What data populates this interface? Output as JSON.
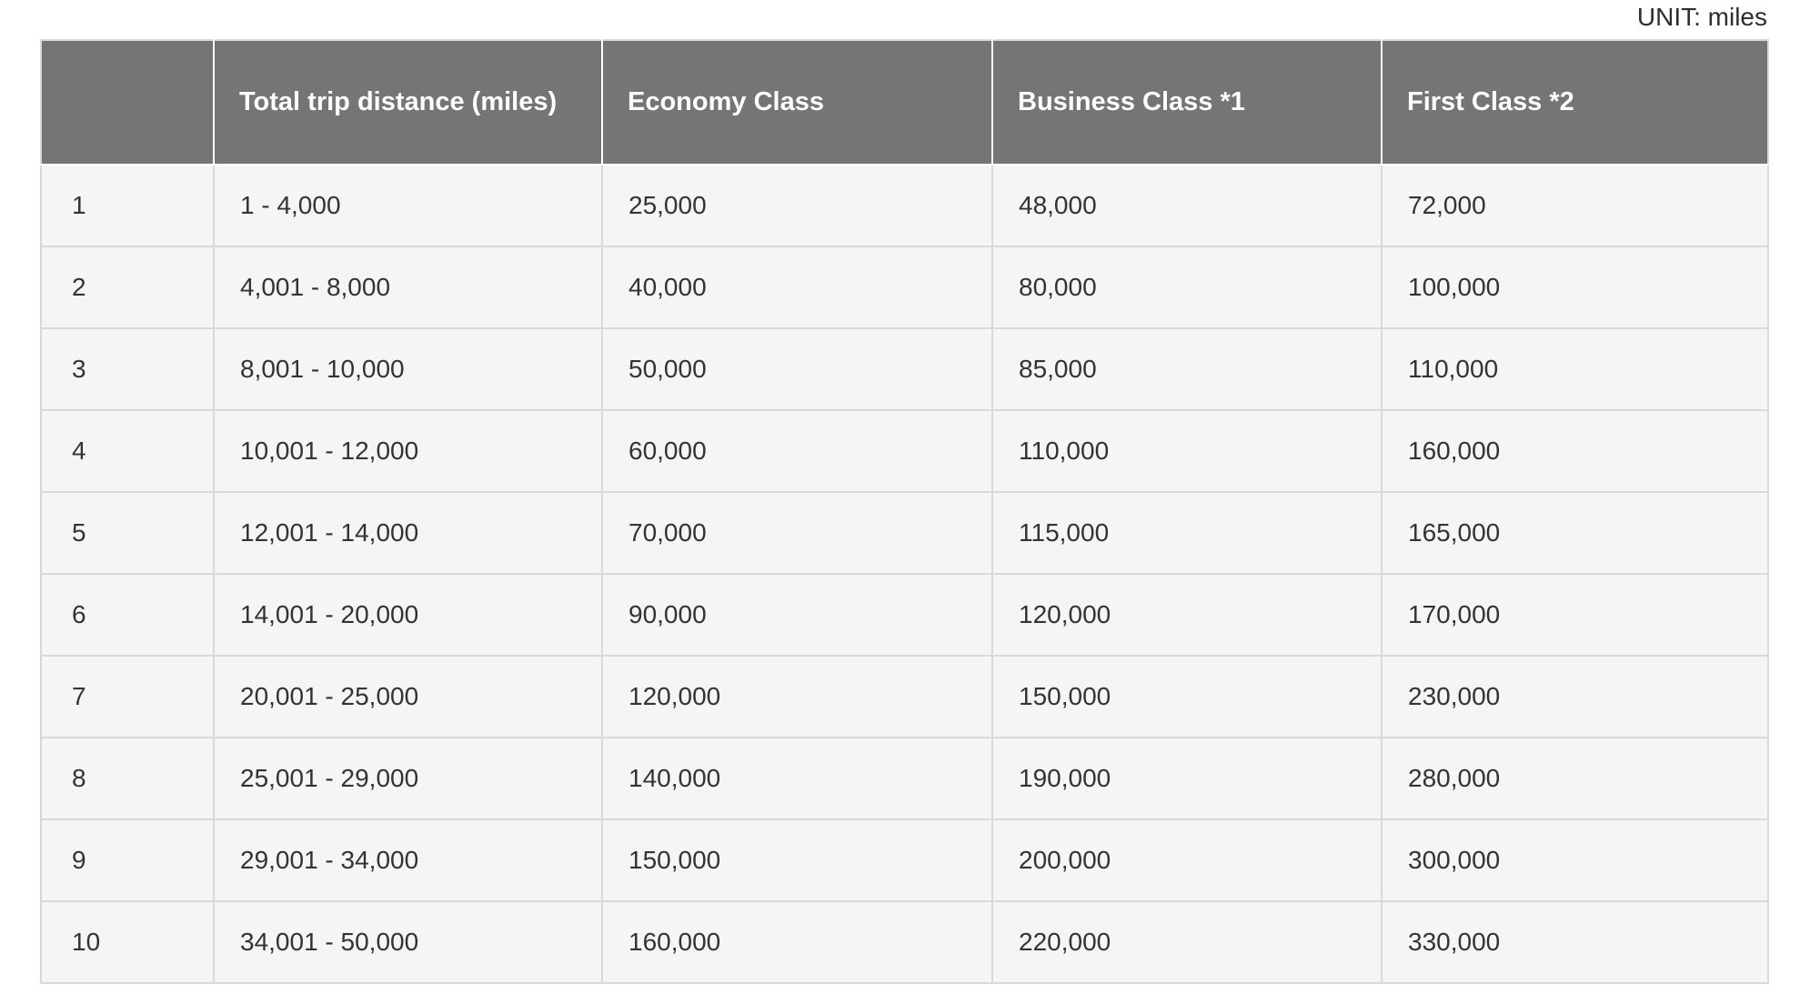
{
  "page": {
    "unit_label": "UNIT: miles"
  },
  "colors": {
    "header_bg": "#757575",
    "header_text": "#ffffff",
    "row_bg": "#f5f5f5",
    "body_text": "#333333",
    "grid_border": "#d9d9d9"
  },
  "chart_data": {
    "type": "table",
    "unit": "miles",
    "columns": [
      "",
      "Total trip distance (miles)",
      "Economy Class",
      "Business Class *1",
      "First Class *2"
    ],
    "rows": [
      [
        "1",
        "1 - 4,000",
        "25,000",
        "48,000",
        "72,000"
      ],
      [
        "2",
        "4,001 - 8,000",
        "40,000",
        "80,000",
        "100,000"
      ],
      [
        "3",
        "8,001 - 10,000",
        "50,000",
        "85,000",
        "110,000"
      ],
      [
        "4",
        "10,001 - 12,000",
        "60,000",
        "110,000",
        "160,000"
      ],
      [
        "5",
        "12,001 - 14,000",
        "70,000",
        "115,000",
        "165,000"
      ],
      [
        "6",
        "14,001 - 20,000",
        "90,000",
        "120,000",
        "170,000"
      ],
      [
        "7",
        "20,001 - 25,000",
        "120,000",
        "150,000",
        "230,000"
      ],
      [
        "8",
        "25,001 - 29,000",
        "140,000",
        "190,000",
        "280,000"
      ],
      [
        "9",
        "29,001 - 34,000",
        "150,000",
        "200,000",
        "300,000"
      ],
      [
        "10",
        "34,001 - 50,000",
        "160,000",
        "220,000",
        "330,000"
      ]
    ]
  }
}
